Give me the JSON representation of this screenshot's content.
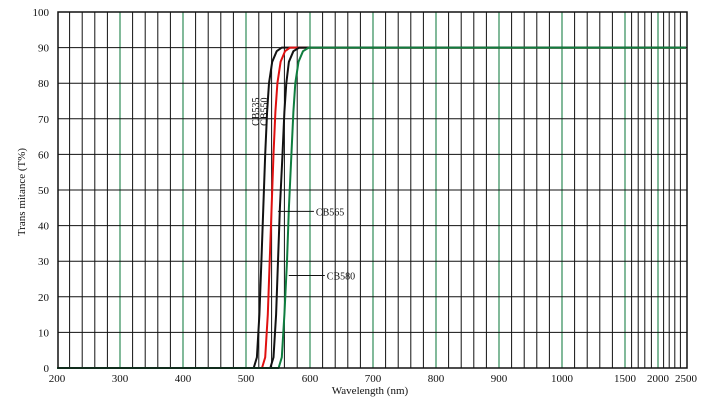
{
  "chart_data": {
    "type": "line",
    "xlabel": "Wavelength (nm)",
    "ylabel": "Trans mitance (T%)",
    "x_ticks": [
      "200",
      "300",
      "400",
      "500",
      "600",
      "700",
      "800",
      "900",
      "1000",
      "1500",
      "2000",
      "2500"
    ],
    "y_ticks": [
      "0",
      "10",
      "20",
      "30",
      "40",
      "50",
      "60",
      "70",
      "80",
      "90",
      "100"
    ],
    "ylim": [
      0,
      100
    ],
    "grid": true,
    "colors": {
      "grid_black": "#111111",
      "grid_green": "#2e8b57"
    },
    "series": [
      {
        "name": "CB535",
        "color": "#111111",
        "label_inline": true,
        "points": [
          [
            200,
            0
          ],
          [
            512,
            0
          ],
          [
            517,
            3
          ],
          [
            521,
            15
          ],
          [
            524,
            30
          ],
          [
            527,
            45
          ],
          [
            530,
            60
          ],
          [
            533,
            72
          ],
          [
            536,
            80
          ],
          [
            541,
            86
          ],
          [
            548,
            89
          ],
          [
            556,
            90
          ],
          [
            2500,
            90
          ]
        ]
      },
      {
        "name": "CB550",
        "color": "#e01010",
        "label_inline": true,
        "points": [
          [
            200,
            0
          ],
          [
            525,
            0
          ],
          [
            530,
            3
          ],
          [
            534,
            15
          ],
          [
            537,
            30
          ],
          [
            540,
            45
          ],
          [
            543,
            60
          ],
          [
            546,
            72
          ],
          [
            549,
            80
          ],
          [
            554,
            86
          ],
          [
            561,
            89
          ],
          [
            569,
            90
          ],
          [
            2500,
            90
          ]
        ]
      },
      {
        "name": "CB565",
        "color": "#111111",
        "label_inline": false,
        "label_at": [
          553,
          44
        ],
        "points": [
          [
            200,
            0
          ],
          [
            538,
            0
          ],
          [
            543,
            3
          ],
          [
            547,
            15
          ],
          [
            550,
            30
          ],
          [
            553,
            45
          ],
          [
            557,
            60
          ],
          [
            560,
            72
          ],
          [
            563,
            80
          ],
          [
            567,
            86
          ],
          [
            574,
            89
          ],
          [
            583,
            90
          ],
          [
            2500,
            90
          ]
        ]
      },
      {
        "name": "CB580",
        "color": "#0f7d3f",
        "label_inline": false,
        "label_at": [
          570,
          26
        ],
        "points": [
          [
            200,
            0
          ],
          [
            551,
            0
          ],
          [
            556,
            3
          ],
          [
            560,
            15
          ],
          [
            564,
            30
          ],
          [
            567,
            45
          ],
          [
            571,
            60
          ],
          [
            574,
            72
          ],
          [
            577,
            80
          ],
          [
            582,
            86
          ],
          [
            589,
            89
          ],
          [
            598,
            90
          ],
          [
            2500,
            90
          ]
        ]
      }
    ]
  }
}
